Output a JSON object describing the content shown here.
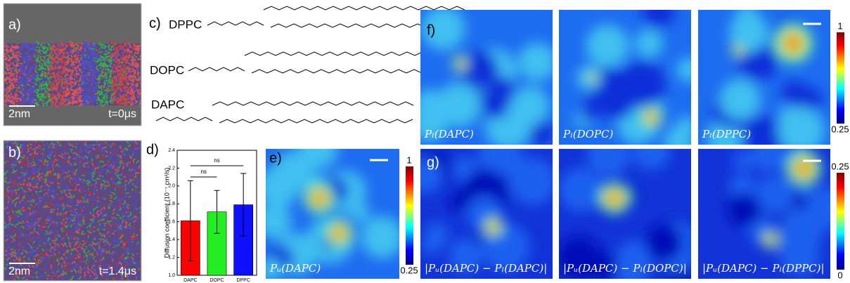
{
  "panels": {
    "a": {
      "label": "a)",
      "scale": "2nm",
      "time": "t=0μs"
    },
    "b": {
      "label": "b)",
      "scale": "2nm",
      "time": "t=1.4μs"
    },
    "c": {
      "label": "c)",
      "lipids": [
        "DPPC",
        "DOPC",
        "DAPC"
      ]
    },
    "e": {
      "label": "e)",
      "map": "Pᵤ(DAPC)",
      "colorbar_max": 1,
      "colorbar_min": 0.25
    },
    "f": {
      "label": "f)",
      "maps": [
        "Pₗ(DAPC)",
        "Pₗ(DOPC)",
        "Pₗ(DPPC)"
      ],
      "colorbar_max": 1,
      "colorbar_min": 0.25
    },
    "g": {
      "label": "g)",
      "maps": [
        "|Pᵤ(DAPC) − Pₗ(DAPC)|",
        "|Pᵤ(DAPC) − Pₗ(DOPC)|",
        "|Pᵤ(DAPC) − Pₗ(DPPC)|"
      ],
      "colorbar_max": 0.25,
      "colorbar_min": 0
    }
  },
  "chart_data": {
    "type": "bar",
    "label": "d)",
    "ylabel": "Diffusion coefficient (10⁻⁷ cm²/s)",
    "categories": [
      "DAPC",
      "DOPC",
      "DPPC"
    ],
    "values": [
      1.61,
      1.71,
      1.79
    ],
    "errors": [
      0.45,
      0.24,
      0.35
    ],
    "colors": [
      "#ff0000",
      "#22ee22",
      "#1010ff"
    ],
    "ylim": [
      1.0,
      2.4
    ],
    "yticks": [
      {
        "value": 1.0,
        "label": "1.0"
      },
      {
        "value": 1.2,
        "label": "1.2"
      },
      {
        "value": 1.4,
        "label": "1.4"
      },
      {
        "value": 1.6,
        "label": "1.6"
      },
      {
        "value": 1.8,
        "label": "1.8"
      },
      {
        "value": 2.0,
        "label": "2.0"
      },
      {
        "value": 2.2,
        "label": "2.2"
      },
      {
        "value": 2.4,
        "label": "2.4"
      }
    ],
    "annotations": [
      "ns",
      "ns"
    ]
  }
}
